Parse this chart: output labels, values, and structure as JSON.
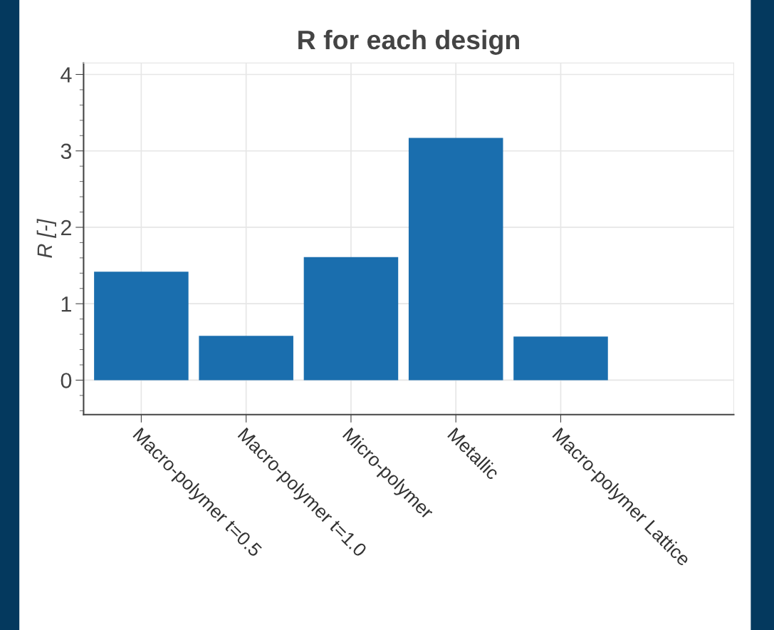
{
  "chart_data": {
    "type": "bar",
    "title": "R for each design",
    "ylabel": "R [-]",
    "categories": [
      "Macro-polymer t=0.5",
      "Macro-polymer t=1.0",
      "Micro-polymer",
      "Metallic",
      "Macro-polymer Lattice"
    ],
    "values": [
      1.42,
      0.58,
      1.61,
      3.17,
      0.57
    ],
    "color": "#1a6eae",
    "ylim": [
      -0.45,
      4.15
    ],
    "yticks": [
      0,
      1,
      2,
      3,
      4
    ],
    "grid": true
  }
}
